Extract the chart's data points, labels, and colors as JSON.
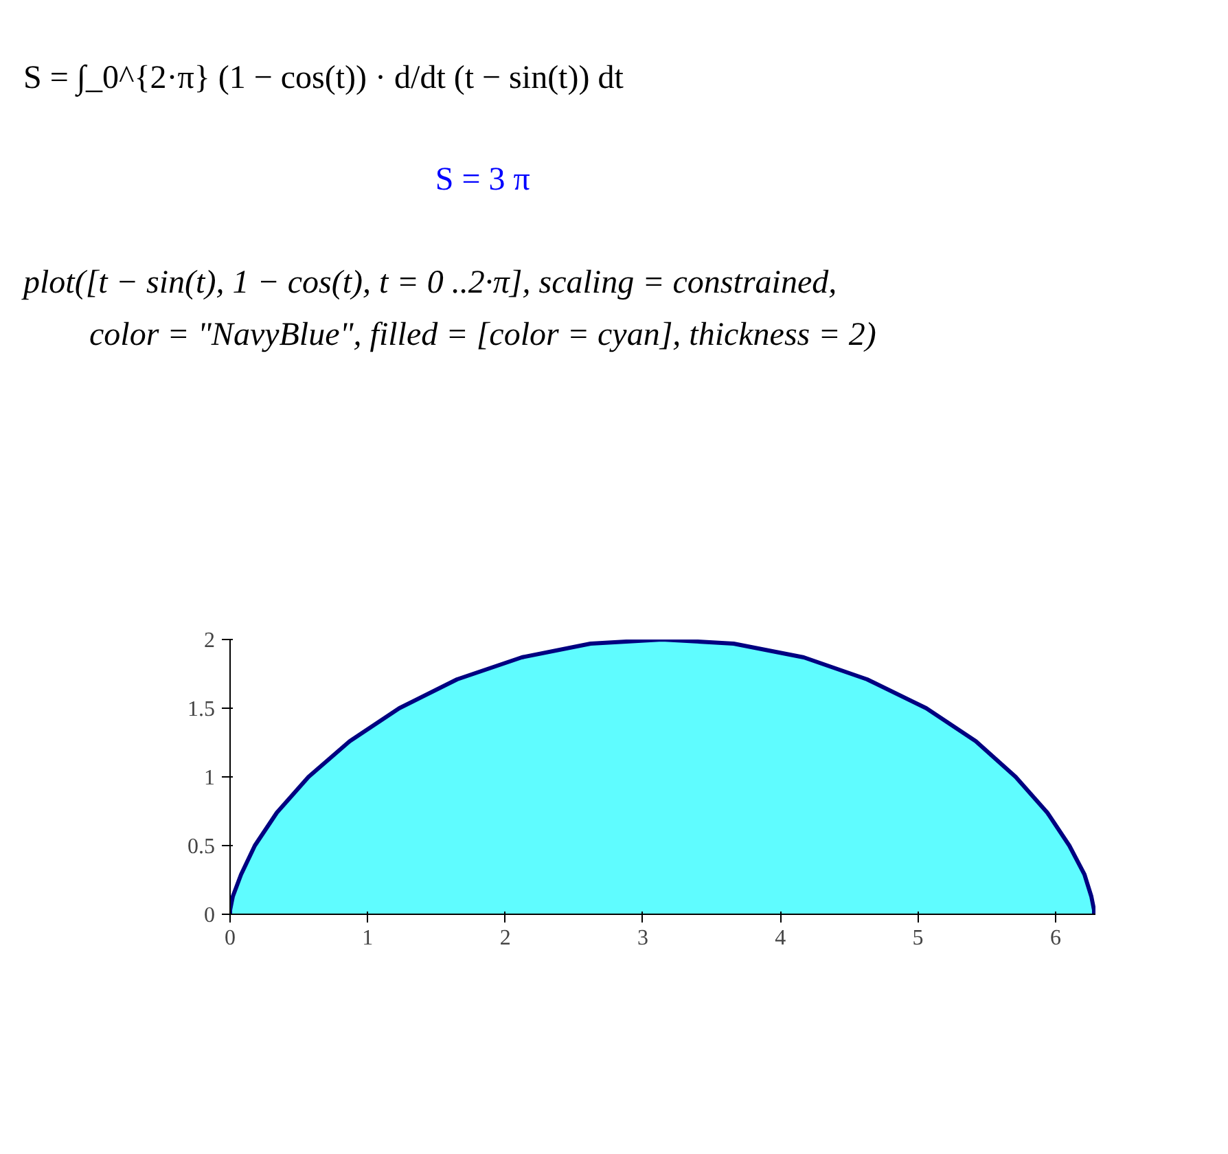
{
  "chart_data": {
    "type": "area",
    "annotations": [
      "S = ∫_0^{2·π} (1 − cos(t)) · d/dt (t − sin(t)) dt",
      "S = 3 π",
      "plot([t − sin(t), 1 − cos(t), t = 0 ..2·π], scaling = constrained,",
      "color = \"NavyBlue\", filled = [color = cyan], thickness = 2)"
    ],
    "x": [
      0,
      0.0,
      0.02,
      0.08,
      0.18,
      0.34,
      0.57,
      0.87,
      1.23,
      1.65,
      2.12,
      2.62,
      3.14,
      3.66,
      4.17,
      4.63,
      5.06,
      5.42,
      5.71,
      5.94,
      6.1,
      6.21,
      6.26,
      6.28,
      6.28
    ],
    "series": [
      {
        "color": "#5ffcff",
        "values": [
          0,
          0.03,
          0.13,
          0.29,
          0.5,
          0.74,
          1,
          1.26,
          1.5,
          1.71,
          1.87,
          1.97,
          2,
          1.97,
          1.87,
          1.71,
          1.5,
          1.26,
          1,
          0.74,
          0.5,
          0.29,
          0.13,
          0.03,
          0
        ]
      }
    ],
    "xlim": [
      0,
      6.29
    ],
    "ylim": [
      0,
      2
    ],
    "xticks": [
      0,
      1,
      2,
      3,
      4,
      5,
      6
    ],
    "yticks": [
      0,
      0.5,
      1,
      1.5,
      2
    ],
    "grid": false,
    "line_style": "solid"
  }
}
